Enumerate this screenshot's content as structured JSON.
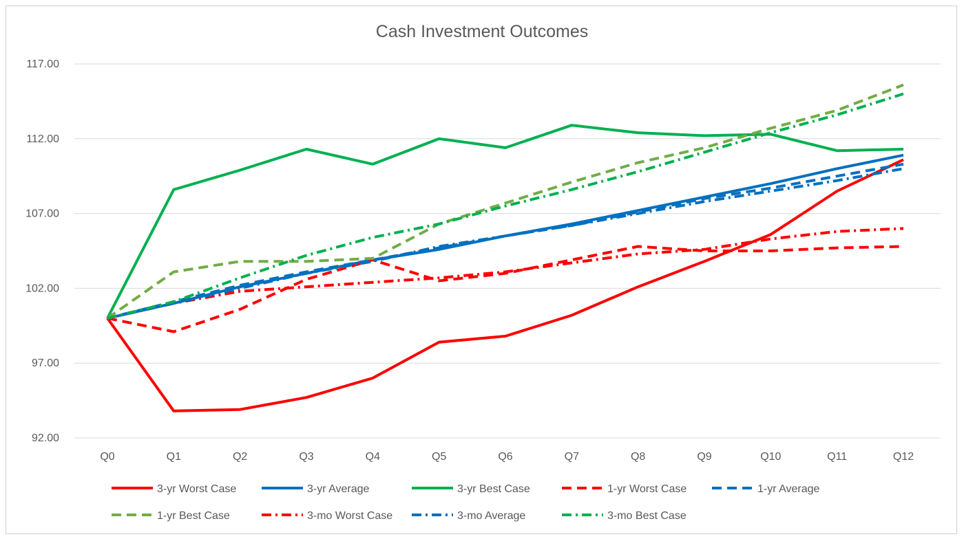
{
  "chart_data": {
    "type": "line",
    "title": "Cash Investment Outcomes",
    "xlabel": "",
    "ylabel": "",
    "categories": [
      "Q0",
      "Q1",
      "Q2",
      "Q3",
      "Q4",
      "Q5",
      "Q6",
      "Q7",
      "Q8",
      "Q9",
      "Q10",
      "Q11",
      "Q12"
    ],
    "ylim": [
      92,
      117
    ],
    "yticks": [
      92,
      97,
      102,
      107,
      112,
      117
    ],
    "ytick_labels": [
      "92.00",
      "97.00",
      "102.00",
      "107.00",
      "112.00",
      "117.00"
    ],
    "grid": "horizontal",
    "legend_position": "bottom",
    "series": [
      {
        "name": "3-yr Worst Case",
        "color": "#ff0000",
        "style": "solid",
        "values": [
          100.0,
          93.8,
          93.9,
          94.7,
          96.0,
          98.4,
          98.8,
          100.2,
          102.1,
          103.8,
          105.6,
          108.5,
          110.6
        ]
      },
      {
        "name": "3-yr Average",
        "color": "#0070c0",
        "style": "solid",
        "values": [
          100.0,
          101.0,
          102.1,
          103.0,
          103.9,
          104.6,
          105.5,
          106.3,
          107.2,
          108.1,
          109.0,
          110.0,
          110.9
        ]
      },
      {
        "name": "3-yr Best Case",
        "color": "#00b050",
        "style": "solid",
        "values": [
          100.0,
          108.6,
          109.9,
          111.3,
          110.3,
          112.0,
          111.4,
          112.9,
          112.4,
          112.2,
          112.3,
          111.2,
          111.3
        ]
      },
      {
        "name": "1-yr Worst Case",
        "color": "#ff0000",
        "style": "dash",
        "values": [
          100.0,
          99.1,
          100.6,
          102.6,
          103.9,
          102.5,
          103.0,
          103.9,
          104.8,
          104.5,
          104.5,
          104.7,
          104.8
        ]
      },
      {
        "name": "1-yr Average",
        "color": "#0070c0",
        "style": "dash",
        "values": [
          100.0,
          101.1,
          102.2,
          103.1,
          103.9,
          104.7,
          105.5,
          106.2,
          107.1,
          108.0,
          108.7,
          109.5,
          110.3
        ]
      },
      {
        "name": "1-yr Best Case",
        "color": "#70ad47",
        "style": "dash",
        "values": [
          100.0,
          103.1,
          103.8,
          103.8,
          104.0,
          106.3,
          107.7,
          109.1,
          110.4,
          111.4,
          112.7,
          113.9,
          115.6
        ]
      },
      {
        "name": "3-mo Worst Case",
        "color": "#ff0000",
        "style": "dashdot",
        "values": [
          100.0,
          101.0,
          101.8,
          102.1,
          102.4,
          102.7,
          103.1,
          103.7,
          104.3,
          104.6,
          105.3,
          105.8,
          106.0
        ]
      },
      {
        "name": "3-mo Average",
        "color": "#0070c0",
        "style": "dashdot",
        "values": [
          100.0,
          101.0,
          102.0,
          103.0,
          103.8,
          104.8,
          105.5,
          106.2,
          107.0,
          107.8,
          108.5,
          109.2,
          110.0
        ]
      },
      {
        "name": "3-mo Best Case",
        "color": "#00b050",
        "style": "dashdot",
        "values": [
          100.0,
          101.1,
          102.7,
          104.2,
          105.4,
          106.3,
          107.5,
          108.6,
          109.8,
          111.1,
          112.4,
          113.6,
          115.0
        ]
      }
    ]
  }
}
